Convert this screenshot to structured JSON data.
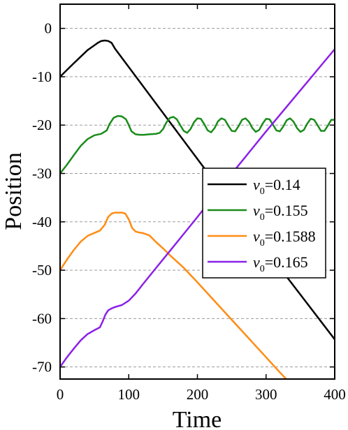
{
  "chart_data": {
    "type": "line",
    "title": "",
    "xlabel": "Time",
    "ylabel": "Position",
    "xlim": [
      0,
      400
    ],
    "ylim": [
      -72.5,
      5
    ],
    "xticks": [
      0,
      100,
      200,
      300,
      400
    ],
    "yticks": [
      0,
      -10,
      -20,
      -30,
      -40,
      -50,
      -60,
      -70
    ],
    "grid": "horizontal dashed gray",
    "legend_position": "right-middle",
    "series": [
      {
        "legend_var": "v",
        "legend_sub": "0",
        "legend_value": "=0.14",
        "color": "#000000",
        "x": [
          0,
          20,
          40,
          55,
          60,
          65,
          70,
          75,
          80,
          120,
          160,
          200,
          240,
          280,
          320,
          360,
          400
        ],
        "y": [
          -10,
          -7.2,
          -4.5,
          -3.0,
          -2.6,
          -2.5,
          -2.6,
          -3.0,
          -4.2,
          -11.8,
          -19.4,
          -27.0,
          -34.6,
          -42.1,
          -49.5,
          -56.9,
          -64.3
        ]
      },
      {
        "legend_var": "v",
        "legend_sub": "0",
        "legend_value": "=0.155",
        "color": "#1a8c1a",
        "x": [
          0,
          10,
          20,
          30,
          40,
          50,
          60,
          68,
          72,
          78,
          84,
          90,
          96,
          100,
          104,
          110,
          116,
          122,
          130,
          140,
          145,
          150,
          155,
          160,
          165,
          170,
          175,
          180,
          185,
          190,
          195,
          200,
          205,
          210,
          215,
          220,
          225,
          230,
          235,
          240,
          245,
          250,
          255,
          260,
          265,
          270,
          275,
          280,
          285,
          290,
          295,
          300,
          305,
          310,
          315,
          320,
          325,
          330,
          335,
          340,
          345,
          350,
          355,
          360,
          365,
          370,
          375,
          380,
          385,
          390,
          395,
          400
        ],
        "y": [
          -30,
          -28.2,
          -26.2,
          -24.3,
          -22.9,
          -22.1,
          -21.8,
          -21.1,
          -19.8,
          -18.5,
          -18.1,
          -18.2,
          -18.8,
          -20.0,
          -21.3,
          -21.9,
          -22.0,
          -22.0,
          -21.9,
          -21.8,
          -21.6,
          -20.8,
          -19.4,
          -18.5,
          -18.3,
          -18.8,
          -20.0,
          -21.2,
          -21.6,
          -20.8,
          -19.4,
          -18.6,
          -18.7,
          -19.8,
          -21.1,
          -21.5,
          -20.6,
          -19.2,
          -18.6,
          -18.9,
          -20.1,
          -21.2,
          -21.3,
          -20.2,
          -18.9,
          -18.6,
          -19.3,
          -20.6,
          -21.4,
          -21.0,
          -19.7,
          -18.7,
          -18.8,
          -19.9,
          -21.1,
          -21.3,
          -20.3,
          -19.0,
          -18.6,
          -19.3,
          -20.6,
          -21.4,
          -21.0,
          -19.7,
          -18.7,
          -18.9,
          -20.0,
          -21.2,
          -21.2,
          -20.1,
          -18.9,
          -18.9
        ]
      },
      {
        "legend_var": "v",
        "legend_sub": "0",
        "legend_value": "=0.1588",
        "color": "#ff8c14",
        "x": [
          0,
          10,
          20,
          30,
          40,
          50,
          58,
          65,
          70,
          75,
          80,
          85,
          90,
          95,
          100,
          105,
          110,
          115,
          120,
          130,
          140,
          150,
          160,
          180,
          200,
          220,
          240,
          260,
          280,
          300,
          320,
          330,
          336
        ],
        "y": [
          -50,
          -47.8,
          -45.8,
          -44.1,
          -42.9,
          -42.3,
          -41.8,
          -40.6,
          -39.0,
          -38.3,
          -38.1,
          -38.1,
          -38.1,
          -38.3,
          -39.5,
          -41.3,
          -42.0,
          -42.2,
          -42.3,
          -42.8,
          -44.2,
          -45.5,
          -46.9,
          -49.5,
          -52.5,
          -55.6,
          -58.7,
          -61.8,
          -64.9,
          -68.0,
          -71.1,
          -72.6,
          -73.5
        ]
      },
      {
        "legend_var": "v",
        "legend_sub": "0",
        "legend_value": "=0.165",
        "color": "#8b21e8",
        "x": [
          0,
          10,
          20,
          30,
          40,
          50,
          58,
          62,
          66,
          70,
          75,
          80,
          90,
          100,
          110,
          120,
          140,
          160,
          180,
          200,
          220,
          240,
          260,
          280,
          300,
          320,
          340,
          360,
          380,
          400
        ],
        "y": [
          -70,
          -68.0,
          -66.2,
          -64.5,
          -63.2,
          -62.4,
          -61.8,
          -60.6,
          -59.2,
          -58.3,
          -57.9,
          -57.6,
          -57.2,
          -56.3,
          -54.8,
          -53.0,
          -49.5,
          -46.0,
          -42.5,
          -39.0,
          -35.4,
          -31.8,
          -28.3,
          -24.8,
          -21.3,
          -17.9,
          -14.5,
          -11.1,
          -7.7,
          -4.3
        ]
      }
    ]
  }
}
